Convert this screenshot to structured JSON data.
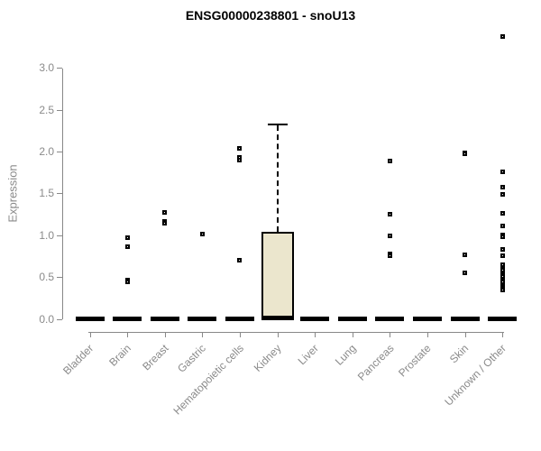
{
  "title": "ENSG00000238801 - snoU13",
  "colors": {
    "box_fill": "#EBE6CD",
    "box_border": "#000000",
    "point": "#000000",
    "axis": "#888888",
    "tick_label": "#8A8A8A",
    "title": "#000000",
    "background": "#FFFFFF"
  },
  "chart_data": {
    "type": "boxplot",
    "title": "ENSG00000238801 - snoU13",
    "xlabel": "",
    "ylabel": "Expression",
    "ylim": [
      0.0,
      3.0
    ],
    "yticks": [
      0.0,
      0.5,
      1.0,
      1.5,
      2.0,
      2.5,
      3.0
    ],
    "grid": false,
    "legend": null,
    "categories": [
      "Bladder",
      "Brain",
      "Breast",
      "Gastric",
      "Hematopoietic cells",
      "Kidney",
      "Liver",
      "Lung",
      "Pancreas",
      "Prostate",
      "Skin",
      "Unknown / Other"
    ],
    "boxes": [
      {
        "label": "Bladder",
        "q1": 0.0,
        "median": 0.0,
        "q3": 0.0,
        "whisker_low": 0.0,
        "whisker_high": 0.0,
        "outliers": []
      },
      {
        "label": "Brain",
        "q1": 0.0,
        "median": 0.0,
        "q3": 0.0,
        "whisker_low": 0.0,
        "whisker_high": 0.0,
        "outliers": [
          0.97,
          0.86,
          0.46,
          0.44
        ]
      },
      {
        "label": "Breast",
        "q1": 0.0,
        "median": 0.0,
        "q3": 0.0,
        "whisker_low": 0.0,
        "whisker_high": 0.0,
        "outliers": [
          1.27,
          1.16,
          1.14
        ]
      },
      {
        "label": "Gastric",
        "q1": 0.0,
        "median": 0.0,
        "q3": 0.0,
        "whisker_low": 0.0,
        "whisker_high": 0.0,
        "outliers": [
          1.01
        ]
      },
      {
        "label": "Hematopoietic cells",
        "q1": 0.0,
        "median": 0.0,
        "q3": 0.0,
        "whisker_low": 0.0,
        "whisker_high": 0.0,
        "outliers": [
          2.04,
          1.93,
          1.9,
          0.7
        ]
      },
      {
        "label": "Kidney",
        "q1": 0.0,
        "median": 0.02,
        "q3": 1.04,
        "whisker_low": 0.0,
        "whisker_high": 2.33,
        "outliers": []
      },
      {
        "label": "Liver",
        "q1": 0.0,
        "median": 0.0,
        "q3": 0.0,
        "whisker_low": 0.0,
        "whisker_high": 0.0,
        "outliers": []
      },
      {
        "label": "Lung",
        "q1": 0.0,
        "median": 0.0,
        "q3": 0.0,
        "whisker_low": 0.0,
        "whisker_high": 0.0,
        "outliers": []
      },
      {
        "label": "Pancreas",
        "q1": 0.0,
        "median": 0.0,
        "q3": 0.0,
        "whisker_low": 0.0,
        "whisker_high": 0.0,
        "outliers": [
          1.89,
          1.25,
          0.99,
          0.78,
          0.76
        ]
      },
      {
        "label": "Prostate",
        "q1": 0.0,
        "median": 0.0,
        "q3": 0.0,
        "whisker_low": 0.0,
        "whisker_high": 0.0,
        "outliers": []
      },
      {
        "label": "Skin",
        "q1": 0.0,
        "median": 0.0,
        "q3": 0.0,
        "whisker_low": 0.0,
        "whisker_high": 0.0,
        "outliers": [
          1.99,
          1.97,
          0.77,
          0.55
        ]
      },
      {
        "label": "Unknown / Other",
        "q1": 0.0,
        "median": 0.0,
        "q3": 0.0,
        "whisker_low": 0.0,
        "whisker_high": 0.0,
        "outliers": [
          3.38,
          1.76,
          1.57,
          1.49,
          1.26,
          1.11,
          1.0,
          0.98,
          0.83,
          0.76,
          0.65,
          0.62,
          0.6,
          0.58,
          0.55,
          0.53,
          0.51,
          0.48,
          0.46,
          0.44,
          0.41,
          0.39,
          0.37,
          0.35
        ]
      }
    ]
  }
}
